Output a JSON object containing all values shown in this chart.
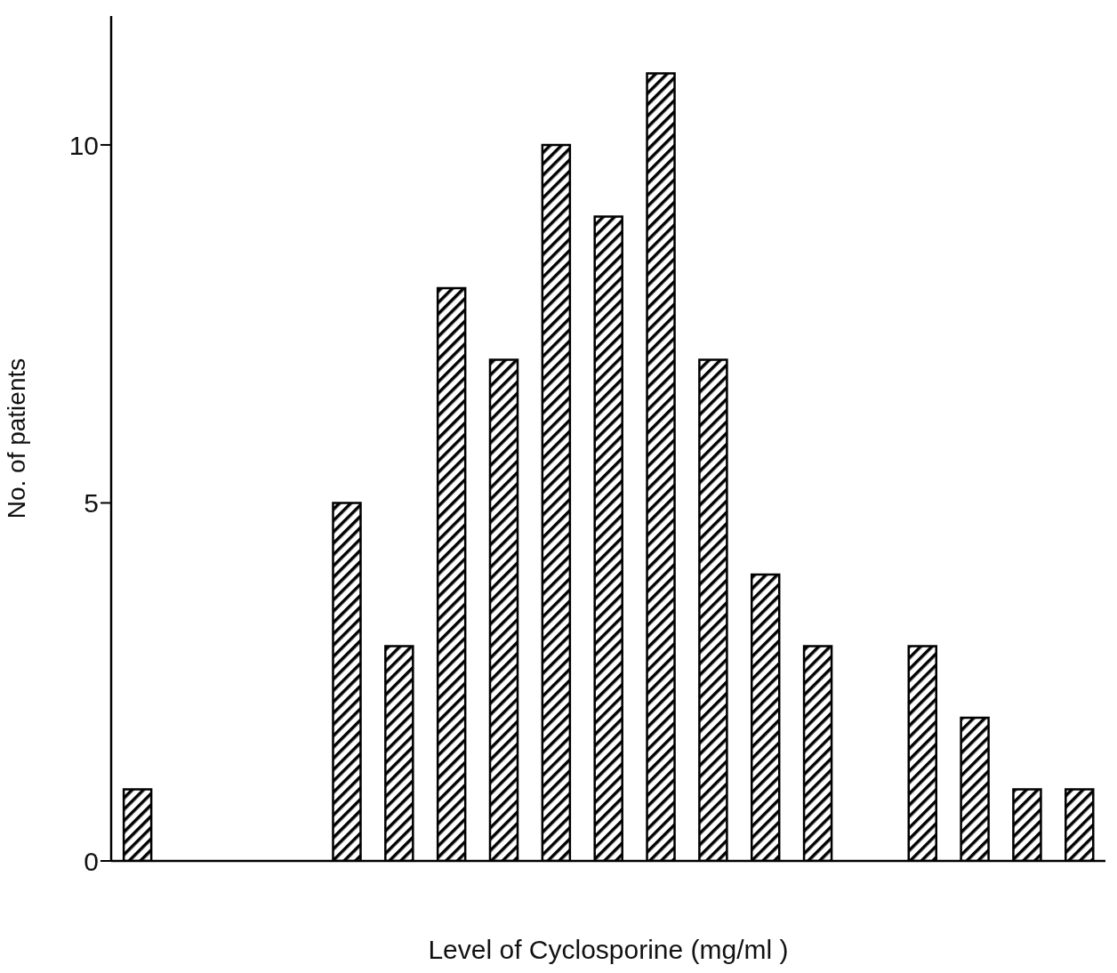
{
  "chart_data": {
    "type": "bar",
    "xlabel": "Level of Cyclosporine (mg/ml )",
    "ylabel": "No. of patients",
    "categories": [
      null,
      null,
      null,
      null,
      null,
      null,
      null,
      null,
      null,
      null,
      null,
      null,
      null,
      null,
      null,
      null,
      null,
      null,
      null
    ],
    "values": [
      1,
      0,
      0,
      0,
      5,
      3,
      8,
      7,
      10,
      9,
      11,
      7,
      4,
      3,
      0,
      3,
      2,
      1,
      1
    ],
    "color": "#000000",
    "ylim": [
      0,
      11.8
    ],
    "yticks": [
      0,
      5,
      10
    ],
    "tick_labels": "y",
    "grid": false
  }
}
